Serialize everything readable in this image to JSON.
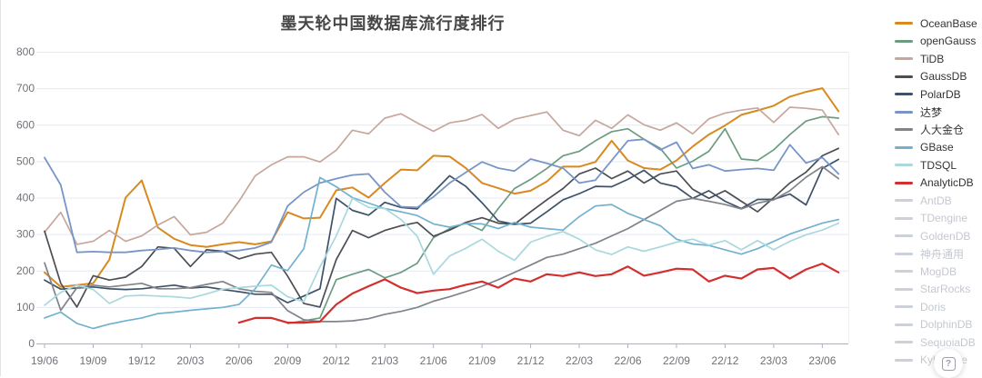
{
  "title": "墨天轮中国数据库流行度排行",
  "help": {
    "glyph": "?"
  },
  "chart_data": {
    "type": "line",
    "title": "墨天轮中国数据库流行度排行",
    "xlabel": "",
    "ylabel": "",
    "ylim": [
      0,
      800
    ],
    "y_ticks": [
      0,
      100,
      200,
      300,
      400,
      500,
      600,
      700,
      800
    ],
    "grid": true,
    "legend_position": "right",
    "x_label_every": 3,
    "x_axis_tick_labels": [
      "19/06",
      "19/09",
      "19/12",
      "20/03",
      "20/06",
      "20/09",
      "20/12",
      "21/03",
      "21/06",
      "21/09",
      "21/12",
      "22/03",
      "22/06",
      "22/09",
      "22/12",
      "23/03",
      "23/06"
    ],
    "x": [
      "19/06",
      "19/07",
      "19/08",
      "19/09",
      "19/10",
      "19/11",
      "19/12",
      "20/01",
      "20/02",
      "20/03",
      "20/04",
      "20/05",
      "20/06",
      "20/07",
      "20/08",
      "20/09",
      "20/10",
      "20/11",
      "20/12",
      "21/01",
      "21/02",
      "21/03",
      "21/04",
      "21/05",
      "21/06",
      "21/07",
      "21/08",
      "21/09",
      "21/10",
      "21/11",
      "21/12",
      "22/01",
      "22/02",
      "22/03",
      "22/04",
      "22/05",
      "22/06",
      "22/07",
      "22/08",
      "22/09",
      "22/10",
      "22/11",
      "22/12",
      "23/01",
      "23/02",
      "23/03",
      "23/04",
      "23/05",
      "23/06",
      "23/07"
    ],
    "series": [
      {
        "name": "OceanBase",
        "color": "#d8891f",
        "active": true,
        "line_width": 2,
        "values": [
          195,
          155,
          160,
          165,
          230,
          400,
          447,
          318,
          287,
          270,
          265,
          272,
          278,
          272,
          280,
          360,
          343,
          345,
          420,
          428,
          400,
          440,
          477,
          475,
          515,
          513,
          481,
          440,
          426,
          411,
          419,
          444,
          485,
          485,
          498,
          556,
          502,
          481,
          477,
          502,
          540,
          573,
          598,
          627,
          639,
          652,
          677,
          690,
          700,
          637
        ]
      },
      {
        "name": "openGauss",
        "color": "#6b9c80",
        "active": true,
        "line_width": 1.7,
        "values": [
          null,
          null,
          null,
          null,
          null,
          null,
          null,
          null,
          null,
          null,
          null,
          null,
          null,
          null,
          null,
          55,
          62,
          70,
          175,
          190,
          203,
          180,
          195,
          220,
          290,
          315,
          330,
          310,
          370,
          425,
          450,
          480,
          515,
          527,
          556,
          581,
          589,
          560,
          535,
          481,
          500,
          527,
          589,
          506,
          502,
          531,
          573,
          610,
          622,
          618
        ]
      },
      {
        "name": "TiDB",
        "color": "#c7a69c",
        "active": true,
        "line_width": 1.7,
        "values": [
          305,
          360,
          272,
          280,
          310,
          280,
          295,
          325,
          348,
          298,
          305,
          330,
          390,
          460,
          490,
          512,
          512,
          498,
          530,
          585,
          575,
          618,
          630,
          605,
          582,
          605,
          612,
          628,
          590,
          615,
          625,
          635,
          585,
          570,
          612,
          590,
          627,
          600,
          585,
          605,
          575,
          616,
          632,
          640,
          646,
          606,
          648,
          645,
          640,
          573
        ]
      },
      {
        "name": "GaussDB",
        "color": "#4b4e55",
        "active": true,
        "line_width": 1.7,
        "values": [
          308,
          165,
          100,
          186,
          174,
          182,
          211,
          265,
          261,
          211,
          257,
          253,
          232,
          245,
          250,
          185,
          110,
          100,
          230,
          310,
          290,
          310,
          323,
          332,
          294,
          311,
          332,
          345,
          330,
          327,
          361,
          394,
          425,
          465,
          481,
          452,
          473,
          440,
          465,
          473,
          423,
          398,
          419,
          390,
          361,
          400,
          440,
          470,
          515,
          535
        ]
      },
      {
        "name": "PolarDB",
        "color": "#3d5269",
        "active": true,
        "line_width": 1.7,
        "values": [
          174,
          149,
          152,
          155,
          150,
          148,
          150,
          155,
          160,
          152,
          155,
          148,
          142,
          135,
          135,
          112,
          130,
          150,
          398,
          365,
          352,
          387,
          373,
          369,
          415,
          460,
          431,
          386,
          336,
          327,
          330,
          361,
          394,
          411,
          431,
          430,
          450,
          475,
          440,
          430,
          398,
          419,
          390,
          370,
          395,
          395,
          410,
          380,
          480,
          505
        ]
      },
      {
        "name": "达梦",
        "color": "#7895c5",
        "active": true,
        "line_width": 1.8,
        "values": [
          510,
          435,
          250,
          252,
          250,
          250,
          255,
          258,
          262,
          255,
          250,
          252,
          255,
          262,
          278,
          377,
          415,
          440,
          452,
          462,
          465,
          415,
          375,
          373,
          402,
          440,
          469,
          498,
          481,
          473,
          506,
          494,
          481,
          440,
          448,
          502,
          556,
          560,
          531,
          552,
          480,
          490,
          473,
          477,
          480,
          475,
          545,
          495,
          510,
          465
        ]
      },
      {
        "name": "人大金仓",
        "color": "#7f838a",
        "active": true,
        "line_width": 1.7,
        "values": [
          221,
          91,
          153,
          160,
          155,
          160,
          165,
          150,
          150,
          153,
          162,
          170,
          150,
          143,
          140,
          90,
          65,
          60,
          60,
          62,
          68,
          80,
          88,
          99,
          116,
          128,
          142,
          157,
          175,
          195,
          215,
          236,
          245,
          260,
          275,
          295,
          315,
          340,
          365,
          390,
          398,
          390,
          381,
          369,
          385,
          394,
          419,
          456,
          485,
          452
        ]
      },
      {
        "name": "GBase",
        "color": "#73b1cf",
        "active": true,
        "line_width": 1.7,
        "values": [
          70,
          86,
          55,
          41,
          53,
          62,
          70,
          82,
          86,
          91,
          95,
          99,
          107,
          150,
          215,
          200,
          260,
          455,
          430,
          400,
          385,
          370,
          361,
          351,
          328,
          319,
          329,
          328,
          315,
          332,
          319,
          315,
          311,
          348,
          377,
          381,
          357,
          340,
          323,
          286,
          273,
          269,
          257,
          245,
          260,
          280,
          300,
          315,
          330,
          340
        ]
      },
      {
        "name": "TDSQL",
        "color": "#a9d8dd",
        "active": true,
        "line_width": 1.7,
        "values": [
          105,
          140,
          160,
          148,
          110,
          130,
          132,
          130,
          128,
          124,
          136,
          149,
          153,
          157,
          160,
          128,
          115,
          210,
          295,
          398,
          373,
          370,
          340,
          294,
          190,
          240,
          261,
          286,
          253,
          228,
          278,
          294,
          307,
          286,
          257,
          244,
          265,
          253,
          265,
          278,
          286,
          270,
          282,
          257,
          282,
          257,
          280,
          298,
          311,
          330
        ]
      },
      {
        "name": "AnalyticDB",
        "color": "#d32f2f",
        "active": true,
        "line_width": 2.2,
        "values": [
          null,
          null,
          null,
          null,
          null,
          null,
          null,
          null,
          null,
          null,
          null,
          null,
          57,
          70,
          70,
          57,
          57,
          60,
          107,
          137,
          157,
          176,
          153,
          138,
          145,
          149,
          161,
          170,
          153,
          178,
          170,
          190,
          185,
          195,
          185,
          190,
          211,
          186,
          195,
          205,
          203,
          170,
          186,
          178,
          203,
          207,
          178,
          203,
          219,
          195
        ]
      },
      {
        "name": "AntDB",
        "color": "#ccd0d8",
        "active": false,
        "values": null
      },
      {
        "name": "TDengine",
        "color": "#ccd0d8",
        "active": false,
        "values": null
      },
      {
        "name": "GoldenDB",
        "color": "#ccd0d8",
        "active": false,
        "values": null
      },
      {
        "name": "神舟通用",
        "color": "#ccd0d8",
        "active": false,
        "values": null
      },
      {
        "name": "MogDB",
        "color": "#ccd0d8",
        "active": false,
        "values": null
      },
      {
        "name": "StarRocks",
        "color": "#ccd0d8",
        "active": false,
        "values": null
      },
      {
        "name": "Doris",
        "color": "#ccd0d8",
        "active": false,
        "values": null
      },
      {
        "name": "DolphinDB",
        "color": "#ccd0d8",
        "active": false,
        "values": null
      },
      {
        "name": "SequoiaDB",
        "color": "#ccd0d8",
        "active": false,
        "values": null
      },
      {
        "name": "Kyligence",
        "color": "#ccd0d8",
        "active": false,
        "values": null
      }
    ]
  }
}
